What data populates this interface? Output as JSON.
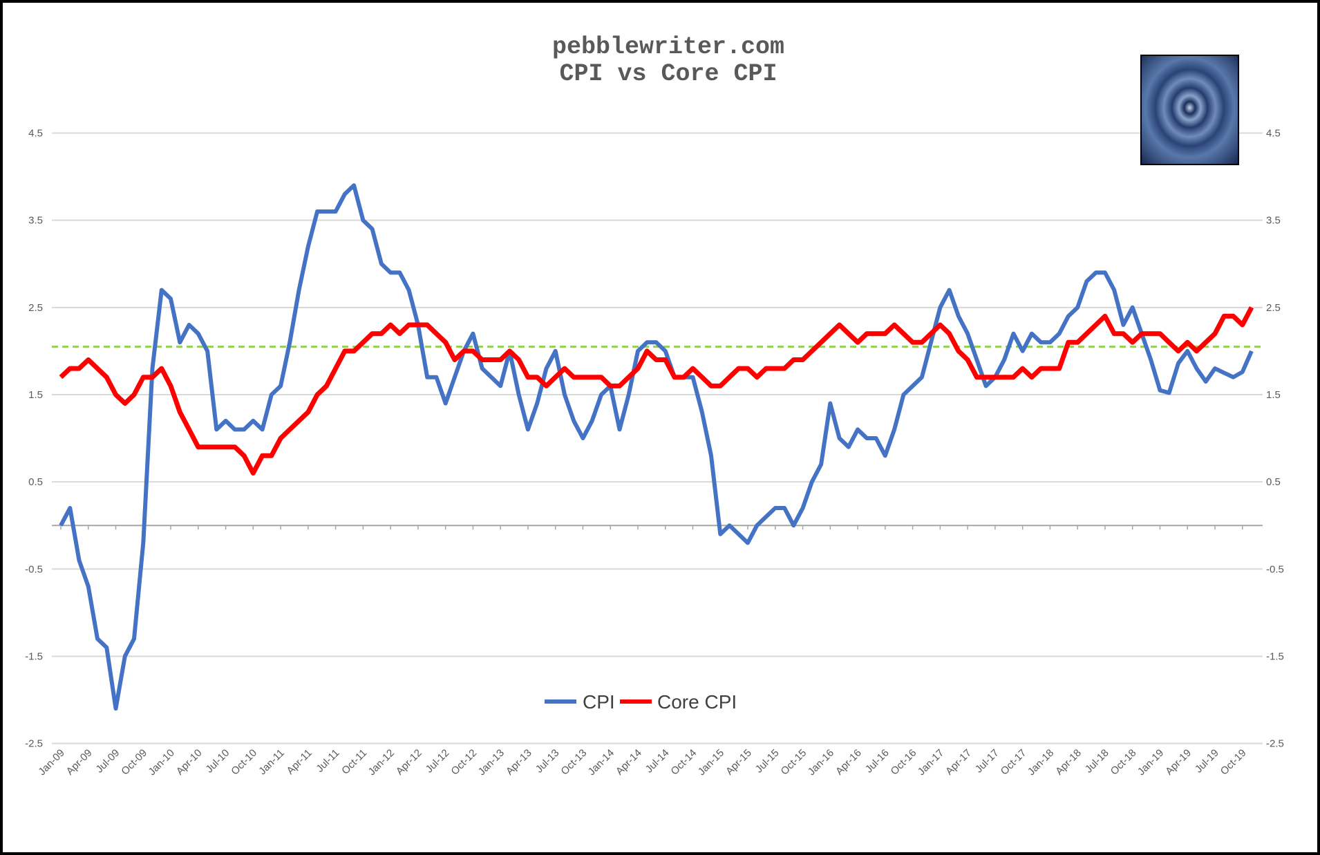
{
  "chart_data": {
    "type": "line",
    "title": "pebblewriter.com",
    "subtitle": "CPI vs Core CPI",
    "xlabel": "",
    "ylabel": "",
    "ylim": [
      -2.5,
      4.5
    ],
    "y_ticks": [
      "4.5",
      "3.5",
      "2.5",
      "1.5",
      "0.5",
      "-0.5",
      "-1.5",
      "-2.5"
    ],
    "y_tick_values": [
      4.5,
      3.5,
      2.5,
      1.5,
      0.5,
      -0.5,
      -1.5,
      -2.5
    ],
    "x_tick_labels": [
      "Jan-09",
      "Apr-09",
      "Jul-09",
      "Oct-09",
      "Jan-10",
      "Apr-10",
      "Jul-10",
      "Oct-10",
      "Jan-11",
      "Apr-11",
      "Jul-11",
      "Oct-11",
      "Jan-12",
      "Apr-12",
      "Jul-12",
      "Oct-12",
      "Jan-13",
      "Apr-13",
      "Jul-13",
      "Oct-13",
      "Jan-14",
      "Apr-14",
      "Jul-14",
      "Oct-14",
      "Jan-15",
      "Apr-15",
      "Jul-15",
      "Oct-15",
      "Jan-16",
      "Apr-16",
      "Jul-16",
      "Oct-16",
      "Jan-17",
      "Apr-17",
      "Jul-17",
      "Oct-17",
      "Jan-18",
      "Apr-18",
      "Jul-18",
      "Oct-18",
      "Jan-19",
      "Apr-19",
      "Jul-19",
      "Oct-19"
    ],
    "grid": true,
    "legend_position": "bottom-center",
    "reference_line": {
      "value": 2.05,
      "color": "#92D050",
      "style": "dashed"
    },
    "series": [
      {
        "name": "CPI",
        "color": "#4472C4",
        "values": [
          0.0,
          0.2,
          -0.4,
          -0.7,
          -1.3,
          -1.4,
          -2.1,
          -1.5,
          -1.3,
          -0.2,
          1.8,
          2.7,
          2.6,
          2.1,
          2.3,
          2.2,
          2.0,
          1.1,
          1.2,
          1.1,
          1.1,
          1.2,
          1.1,
          1.5,
          1.6,
          2.1,
          2.7,
          3.2,
          3.6,
          3.6,
          3.6,
          3.8,
          3.9,
          3.5,
          3.4,
          3.0,
          2.9,
          2.9,
          2.7,
          2.3,
          1.7,
          1.7,
          1.4,
          1.7,
          2.0,
          2.2,
          1.8,
          1.7,
          1.6,
          2.0,
          1.5,
          1.1,
          1.4,
          1.8,
          2.0,
          1.5,
          1.2,
          1.0,
          1.2,
          1.5,
          1.6,
          1.1,
          1.5,
          2.0,
          2.1,
          2.1,
          2.0,
          1.7,
          1.7,
          1.7,
          1.3,
          0.8,
          -0.1,
          0.0,
          -0.1,
          -0.2,
          0.0,
          0.1,
          0.2,
          0.2,
          0.0,
          0.2,
          0.5,
          0.7,
          1.4,
          1.0,
          0.9,
          1.1,
          1.0,
          1.0,
          0.8,
          1.1,
          1.5,
          1.6,
          1.7,
          2.1,
          2.5,
          2.7,
          2.4,
          2.2,
          1.9,
          1.6,
          1.7,
          1.9,
          2.2,
          2.0,
          2.2,
          2.1,
          2.1,
          2.2,
          2.4,
          2.5,
          2.8,
          2.9,
          2.9,
          2.7,
          2.3,
          2.5,
          2.2,
          1.9,
          1.55,
          1.52,
          1.86,
          2.0,
          1.8,
          1.65,
          1.8,
          1.75,
          1.7,
          1.76,
          2.0
        ]
      },
      {
        "name": "Core CPI",
        "color": "#FF0000",
        "values": [
          1.7,
          1.8,
          1.8,
          1.9,
          1.8,
          1.7,
          1.5,
          1.4,
          1.5,
          1.7,
          1.7,
          1.8,
          1.6,
          1.3,
          1.1,
          0.9,
          0.9,
          0.9,
          0.9,
          0.9,
          0.8,
          0.6,
          0.8,
          0.8,
          1.0,
          1.1,
          1.2,
          1.3,
          1.5,
          1.6,
          1.8,
          2.0,
          2.0,
          2.1,
          2.2,
          2.2,
          2.3,
          2.2,
          2.3,
          2.3,
          2.3,
          2.2,
          2.1,
          1.9,
          2.0,
          2.0,
          1.9,
          1.9,
          1.9,
          2.0,
          1.9,
          1.7,
          1.7,
          1.6,
          1.7,
          1.8,
          1.7,
          1.7,
          1.7,
          1.7,
          1.6,
          1.6,
          1.7,
          1.8,
          2.0,
          1.9,
          1.9,
          1.7,
          1.7,
          1.8,
          1.7,
          1.6,
          1.6,
          1.7,
          1.8,
          1.8,
          1.7,
          1.8,
          1.8,
          1.8,
          1.9,
          1.9,
          2.0,
          2.1,
          2.2,
          2.3,
          2.2,
          2.1,
          2.2,
          2.2,
          2.2,
          2.3,
          2.2,
          2.1,
          2.1,
          2.2,
          2.3,
          2.2,
          2.0,
          1.9,
          1.7,
          1.7,
          1.7,
          1.7,
          1.7,
          1.8,
          1.7,
          1.8,
          1.8,
          1.8,
          2.1,
          2.1,
          2.2,
          2.3,
          2.4,
          2.2,
          2.2,
          2.1,
          2.2,
          2.2,
          2.2,
          2.1,
          2.0,
          2.1,
          2.0,
          2.1,
          2.2,
          2.4,
          2.4,
          2.3,
          2.5
        ]
      }
    ]
  }
}
